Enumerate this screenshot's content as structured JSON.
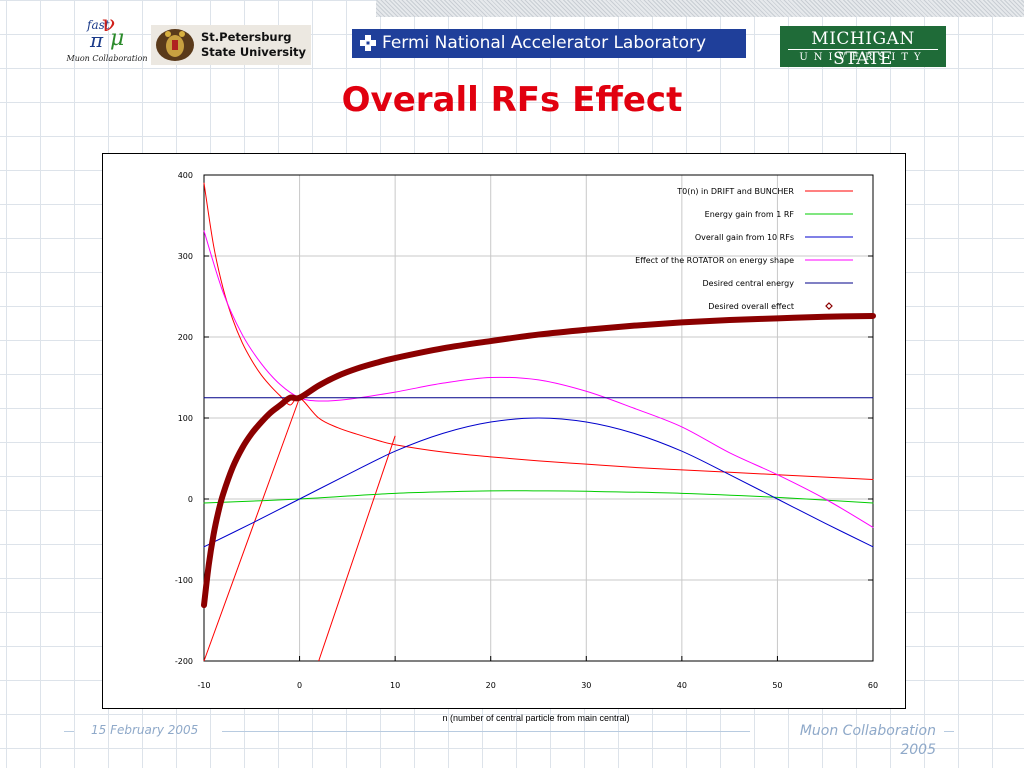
{
  "header": {
    "muon_logo": {
      "fast": "fast",
      "caption": "Muon Collaboration"
    },
    "spb_logo": {
      "text": "St.Petersburg\nState University"
    },
    "fermi_logo": {
      "text": "Fermi National Accelerator Laboratory"
    },
    "msu_logo": {
      "line1": "MICHIGAN STATE",
      "line2": "UNIVERSITY"
    }
  },
  "slide": {
    "title": "Overall RFs Effect"
  },
  "footer": {
    "date": "15 February 2005",
    "org": "Muon Collaboration\n2005"
  },
  "colors": {
    "title": "#e1000f",
    "footer": "#8fa9c9"
  },
  "chart_data": {
    "type": "line",
    "xlabel": "n (number of central particle from main central)",
    "ylabel": "",
    "xlim": [
      -10,
      60
    ],
    "ylim": [
      -200,
      400
    ],
    "xticks": [
      -10,
      0,
      10,
      20,
      30,
      40,
      50,
      60
    ],
    "yticks": [
      -200,
      -100,
      0,
      100,
      200,
      300,
      400
    ],
    "grid": true,
    "legend_position": "top-right",
    "series": [
      {
        "name": "T0(n) in DRIFT and BUNCHER",
        "color": "#ff0000",
        "width": 1,
        "x": [
          -10,
          -9,
          -8,
          -7,
          -6,
          -5,
          -4,
          -3,
          -2,
          -1,
          0,
          2,
          4,
          6,
          8,
          10,
          15,
          20,
          25,
          30,
          35,
          40,
          45,
          50,
          55,
          60
        ],
        "y": [
          390,
          313,
          260,
          222,
          193,
          171,
          153,
          139,
          127,
          116,
          125,
          100,
          88,
          80,
          73,
          67,
          58,
          52,
          47,
          43,
          39,
          36,
          33,
          30,
          27,
          24
        ]
      },
      {
        "name": "Energy gain from 1 RF",
        "color": "#00cc00",
        "width": 1,
        "x": [
          -10,
          0,
          10,
          20,
          25,
          30,
          40,
          50,
          60
        ],
        "y": [
          -5,
          0,
          7,
          10,
          10,
          9.5,
          7,
          2,
          -5
        ]
      },
      {
        "name": "Overall gain from 10 RFs",
        "color": "#0000cc",
        "width": 1,
        "x": [
          -10,
          -5,
          0,
          5,
          10,
          15,
          20,
          25,
          30,
          35,
          40,
          45,
          50,
          55,
          60
        ],
        "y": [
          -59,
          -30,
          0,
          30,
          59,
          81,
          95,
          100,
          95,
          81,
          59,
          30,
          0,
          -30,
          -59
        ]
      },
      {
        "name": "Effect of the ROTATOR on energy shape",
        "color": "#ff00ff",
        "width": 1,
        "x": [
          -10,
          -8,
          -6,
          -4,
          -2,
          0,
          2,
          5,
          10,
          15,
          20,
          25,
          30,
          35,
          40,
          45,
          50,
          55,
          60
        ],
        "y": [
          331,
          255,
          203,
          167,
          141,
          125,
          121,
          123,
          132,
          143,
          150,
          147,
          133,
          112,
          89,
          57,
          30,
          0,
          -35
        ]
      },
      {
        "name": "Desired central energy",
        "color": "#000088",
        "width": 1,
        "x": [
          -10,
          60
        ],
        "y": [
          125,
          125
        ]
      },
      {
        "name": "Desired overall effect",
        "color": "#8b0000",
        "width": 6,
        "marker": "diamond",
        "x": [
          -10,
          -9.5,
          -9,
          -8.5,
          -8,
          -7,
          -6,
          -5,
          -4,
          -3,
          -2,
          -1,
          0,
          2,
          4,
          6,
          8,
          10,
          15,
          20,
          25,
          30,
          35,
          40,
          45,
          50,
          55,
          60
        ],
        "y": [
          -131,
          -81,
          -44,
          -16,
          6,
          39,
          63,
          81,
          95,
          107,
          116,
          125,
          125,
          140,
          152,
          161,
          168,
          174,
          186,
          195,
          203,
          209,
          214,
          218,
          221,
          223,
          225,
          226
        ]
      }
    ],
    "annotations": [
      {
        "type": "line",
        "color": "#ff0000",
        "x": [
          -10,
          0
        ],
        "y": [
          -200,
          125
        ]
      },
      {
        "type": "line",
        "color": "#ff0000",
        "x": [
          2,
          10
        ],
        "y": [
          -200,
          78
        ]
      }
    ]
  }
}
